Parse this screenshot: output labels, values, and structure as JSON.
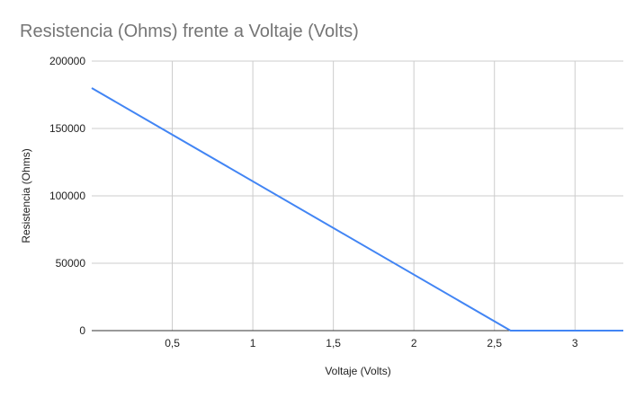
{
  "chart_data": {
    "type": "line",
    "title": "Resistencia (Ohms) frente a Voltaje (Volts)",
    "xlabel": "Voltaje (Volts)",
    "ylabel": "Resistencia (Ohms)",
    "xlim": [
      0,
      3.3
    ],
    "ylim": [
      0,
      200000
    ],
    "x_ticks": [
      {
        "value": 0.5,
        "label": "0,5"
      },
      {
        "value": 1,
        "label": "1"
      },
      {
        "value": 1.5,
        "label": "1,5"
      },
      {
        "value": 2,
        "label": "2"
      },
      {
        "value": 2.5,
        "label": "2,5"
      },
      {
        "value": 3,
        "label": "3"
      }
    ],
    "y_ticks": [
      {
        "value": 0,
        "label": "0"
      },
      {
        "value": 50000,
        "label": "50000"
      },
      {
        "value": 100000,
        "label": "100000"
      },
      {
        "value": 150000,
        "label": "150000"
      },
      {
        "value": 200000,
        "label": "200000"
      }
    ],
    "grid": true,
    "legend": "none",
    "series": [
      {
        "color": "#4285f4",
        "x": [
          0,
          2.6,
          3.3
        ],
        "y": [
          180000,
          0,
          0
        ]
      }
    ]
  }
}
